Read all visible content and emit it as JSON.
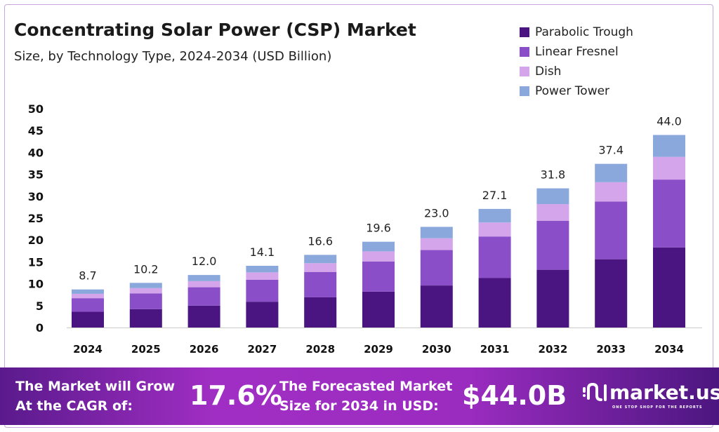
{
  "chart_data": {
    "type": "bar",
    "stacked": true,
    "title": "Concentrating Solar Power (CSP) Market",
    "subtitle": "Size, by Technology Type, 2024-2034 (USD Billion)",
    "categories": [
      "2024",
      "2025",
      "2026",
      "2027",
      "2028",
      "2029",
      "2030",
      "2031",
      "2032",
      "2033",
      "2034"
    ],
    "totals": [
      "8.7",
      "10.2",
      "12.0",
      "14.1",
      "16.6",
      "19.6",
      "23.0",
      "27.1",
      "31.8",
      "37.4",
      "44.0"
    ],
    "series": [
      {
        "name": "Parabolic Trough",
        "color": "#4a1580",
        "values": [
          3.6,
          4.2,
          5.0,
          5.9,
          6.9,
          8.2,
          9.6,
          11.3,
          13.2,
          15.6,
          18.3
        ]
      },
      {
        "name": "Linear Fresnel",
        "color": "#8a4ec8",
        "values": [
          3.1,
          3.6,
          4.2,
          5.0,
          5.8,
          6.9,
          8.1,
          9.5,
          11.2,
          13.2,
          15.5
        ]
      },
      {
        "name": "Dish",
        "color": "#d4a5ea",
        "values": [
          1.0,
          1.2,
          1.4,
          1.7,
          2.0,
          2.3,
          2.7,
          3.2,
          3.8,
          4.4,
          5.2
        ]
      },
      {
        "name": "Power Tower",
        "color": "#8aa8dc",
        "values": [
          1.0,
          1.2,
          1.4,
          1.5,
          1.9,
          2.2,
          2.6,
          3.1,
          3.6,
          4.2,
          5.0
        ]
      }
    ],
    "ylim": [
      0,
      50
    ],
    "yticks": [
      "0",
      "5",
      "10",
      "15",
      "20",
      "25",
      "30",
      "35",
      "40",
      "45",
      "50"
    ],
    "grid": false,
    "legend_position": "top-right"
  },
  "banner": {
    "cagr_label_1": "The Market will Grow",
    "cagr_label_2": "At the CAGR of:",
    "cagr_value": "17.6%",
    "forecast_label_1": "The Forecasted Market",
    "forecast_label_2": "Size for 2034 in USD:",
    "forecast_value": "$44.0B",
    "logo_name": "market.us",
    "logo_tagline": "ONE STOP SHOP FOR THE REPORTS"
  }
}
